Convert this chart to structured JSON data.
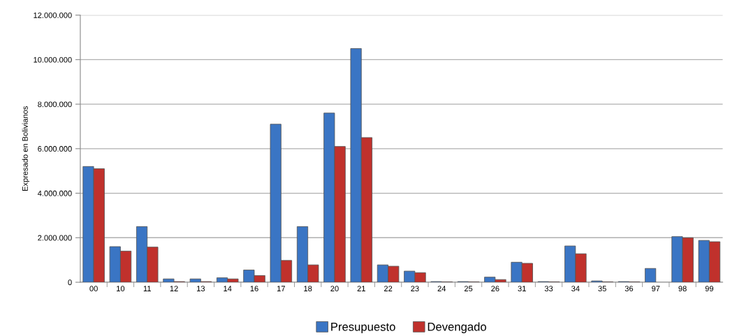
{
  "chart_data": {
    "type": "bar",
    "ylabel": "Expresado en Bolivianos",
    "categories": [
      "00",
      "10",
      "11",
      "12",
      "13",
      "14",
      "16",
      "17",
      "18",
      "20",
      "21",
      "22",
      "23",
      "24",
      "25",
      "26",
      "31",
      "33",
      "34",
      "35",
      "36",
      "97",
      "98",
      "99"
    ],
    "series": [
      {
        "name": "Presupuesto",
        "color": "#3a75c4",
        "values": [
          5200000,
          1600000,
          2500000,
          150000,
          150000,
          200000,
          550000,
          7100000,
          2500000,
          7600000,
          10500000,
          780000,
          500000,
          30000,
          30000,
          230000,
          900000,
          30000,
          1630000,
          60000,
          30000,
          620000,
          2050000,
          1880000
        ]
      },
      {
        "name": "Devengado",
        "color": "#c0312c",
        "values": [
          5100000,
          1400000,
          1580000,
          30000,
          30000,
          150000,
          300000,
          980000,
          780000,
          6100000,
          6500000,
          720000,
          430000,
          20000,
          20000,
          120000,
          850000,
          20000,
          1280000,
          20000,
          20000,
          null,
          2000000,
          1820000
        ]
      }
    ],
    "ylim": [
      0,
      12000000
    ],
    "yticks": [
      {
        "value": 0,
        "label": "0"
      },
      {
        "value": 2000000,
        "label": "2.000.000"
      },
      {
        "value": 4000000,
        "label": "4.000.000"
      },
      {
        "value": 6000000,
        "label": "6.000.000"
      },
      {
        "value": 8000000,
        "label": "8.000.000"
      },
      {
        "value": 10000000,
        "label": "10.000.000"
      },
      {
        "value": 12000000,
        "label": "12.000.000"
      }
    ],
    "grid": "y",
    "legend": "bottom"
  }
}
